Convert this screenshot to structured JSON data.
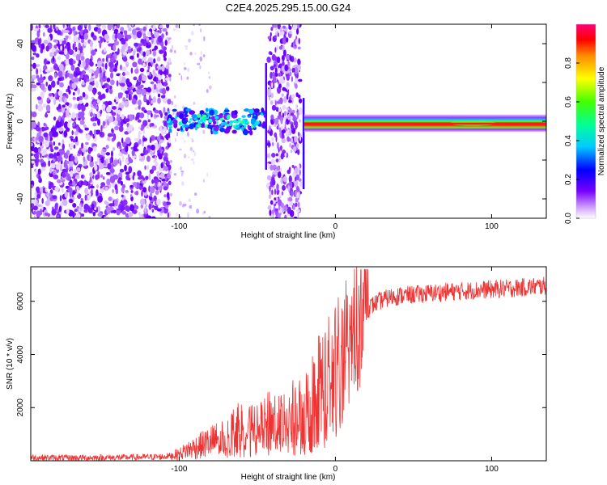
{
  "chart_data": [
    {
      "type": "heatmap",
      "title": "C2E4.2025.295.15.00.G24",
      "xlabel": "Height of straight line (km)",
      "ylabel": "Frequency (Hz)",
      "xlim": [
        -195,
        135
      ],
      "ylim": [
        -50,
        50
      ],
      "xticks": [
        -100,
        0,
        100
      ],
      "xtick_labels": [
        "-100",
        "0",
        "100"
      ],
      "yticks": [
        -40,
        -20,
        0,
        20,
        40
      ],
      "ytick_labels": [
        "-40",
        "-20",
        "0",
        "20",
        "40"
      ],
      "colorbar": {
        "label": "Normalized spectral amplitude",
        "range": [
          0,
          1
        ],
        "ticks": [
          0.0,
          0.2,
          0.4,
          0.6,
          0.8
        ],
        "tick_labels": [
          "0.0",
          "0.2",
          "0.4",
          "0.6",
          "0.8"
        ]
      },
      "regions": [
        {
          "name": "noise-left",
          "x": [
            -195,
            -106
          ],
          "freq": [
            -50,
            50
          ],
          "amplitude": 0.05
        },
        {
          "name": "sparse-noise",
          "x": [
            -106,
            -80
          ],
          "freq": [
            -50,
            50
          ],
          "amplitude": 0.02
        },
        {
          "name": "band-weak",
          "x": [
            -107,
            -45
          ],
          "freq": [
            -6,
            6
          ],
          "amplitude": 0.35
        },
        {
          "name": "noise-strip",
          "x": [
            -43,
            -22
          ],
          "freq": [
            -50,
            50
          ],
          "amplitude": 0.08
        },
        {
          "name": "spike",
          "x": [
            -45,
            -44
          ],
          "freq": [
            -25,
            30
          ],
          "amplitude": 0.15
        },
        {
          "name": "band-strong",
          "x": [
            -20,
            135
          ],
          "freq": [
            -2,
            1
          ],
          "amplitude": 0.95
        }
      ]
    },
    {
      "type": "line",
      "title": "",
      "xlabel": "Height of straight line (km)",
      "ylabel": "SNR (10 * v/v)",
      "xlim": [
        -195,
        135
      ],
      "ylim": [
        0,
        7300
      ],
      "xticks": [
        -100,
        0,
        100
      ],
      "xtick_labels": [
        "-100",
        "0",
        "100"
      ],
      "yticks": [
        2000,
        4000,
        6000
      ],
      "ytick_labels": [
        "2000",
        "4000",
        "6000"
      ],
      "series": [
        {
          "name": "SNR",
          "color": "#ee3333",
          "x": [
            -195,
            -170,
            -140,
            -110,
            -100,
            -95,
            -90,
            -85,
            -80,
            -75,
            -70,
            -65,
            -60,
            -55,
            -50,
            -45,
            -40,
            -35,
            -30,
            -25,
            -20,
            -15,
            -10,
            -5,
            0,
            5,
            10,
            15,
            20,
            25,
            30,
            35,
            40,
            50,
            60,
            70,
            80,
            90,
            100,
            110,
            120,
            130,
            135
          ],
          "values": [
            120,
            110,
            120,
            150,
            250,
            400,
            500,
            600,
            700,
            800,
            900,
            1100,
            1200,
            1250,
            1100,
            1300,
            1500,
            1400,
            1500,
            1700,
            1800,
            2200,
            2700,
            3000,
            3400,
            4000,
            4700,
            5300,
            5700,
            5900,
            6050,
            6150,
            6200,
            6250,
            6300,
            6350,
            6380,
            6420,
            6450,
            6480,
            6520,
            6560,
            6580
          ]
        }
      ]
    }
  ],
  "colors": {
    "line": "#ee3333",
    "band": "#ff2222",
    "axis": "#000000"
  }
}
